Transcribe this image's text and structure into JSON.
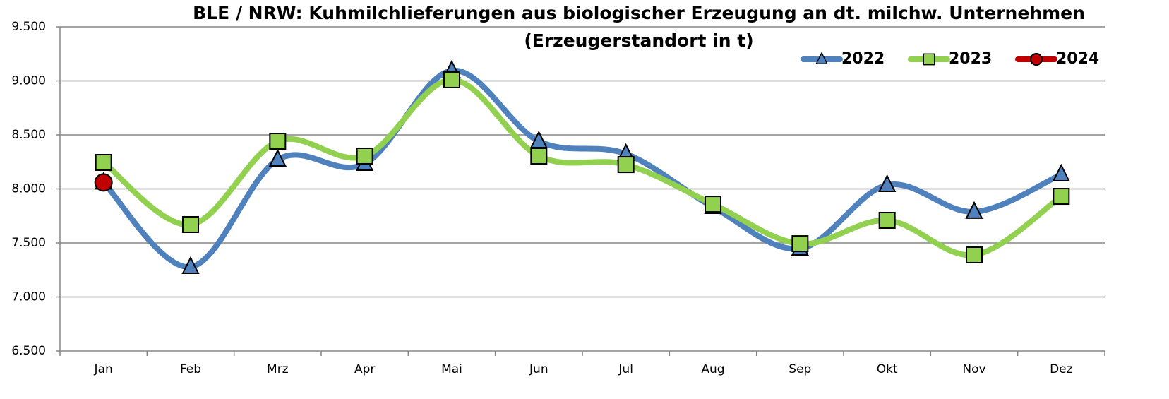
{
  "chart_data": {
    "type": "line",
    "title": "BLE / NRW: Kuhmilchlieferungen aus biologischer Erzeugung an dt. milchw. Unternehmen",
    "subtitle": "(Erzeugerstandort in t)",
    "categories": [
      "Jan",
      "Feb",
      "Mrz",
      "Apr",
      "Mai",
      "Jun",
      "Jul",
      "Aug",
      "Sep",
      "Okt",
      "Nov",
      "Dez"
    ],
    "series": [
      {
        "name": "2022",
        "color": "#4f81bd",
        "marker": "triangle",
        "values": [
          8060,
          7278,
          8271,
          8232,
          9095,
          8441,
          8324,
          7833,
          7448,
          8036,
          7788,
          8134
        ]
      },
      {
        "name": "2023",
        "color": "#92d050",
        "marker": "square",
        "values": [
          8245,
          7670,
          8441,
          8304,
          9010,
          8304,
          8225,
          7859,
          7493,
          7709,
          7389,
          7931
        ]
      },
      {
        "name": "2024",
        "color": "#c00000",
        "marker": "circle",
        "values": [
          8060,
          null,
          null,
          null,
          null,
          null,
          null,
          null,
          null,
          null,
          null,
          null
        ]
      }
    ],
    "ylim": [
      6500,
      9500
    ],
    "yticks": [
      {
        "value": 6500,
        "label": "6.500"
      },
      {
        "value": 7000,
        "label": "7.000"
      },
      {
        "value": 7500,
        "label": "7.500"
      },
      {
        "value": 8000,
        "label": "8.000"
      },
      {
        "value": 8500,
        "label": "8.500"
      },
      {
        "value": 9000,
        "label": "9.000"
      },
      {
        "value": 9500,
        "label": "9.500"
      }
    ],
    "grid": true,
    "legend": "top-right"
  }
}
